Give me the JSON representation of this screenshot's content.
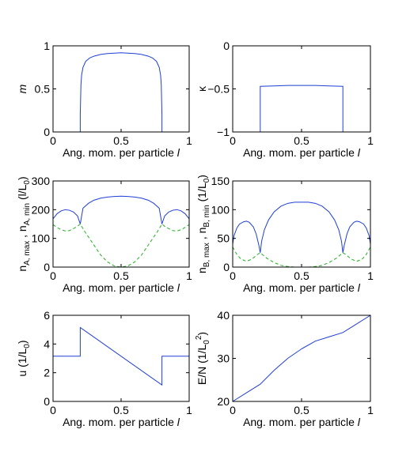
{
  "colors": {
    "blue": "#1f3fd6",
    "green": "#22b022",
    "axis": "#000000"
  },
  "chart_data": [
    {
      "id": "m",
      "type": "line",
      "ylabel": "m",
      "ylabel_italic": true,
      "xlabel": "Ang. mom. per particle",
      "xlabel_var": "l",
      "xlim": [
        0,
        1
      ],
      "ylim": [
        0,
        1
      ],
      "xticks": [
        0,
        0.5,
        1
      ],
      "xtick_labels": [
        "0",
        "0.5",
        "1"
      ],
      "yticks": [
        0,
        0.5,
        1
      ],
      "ytick_labels": [
        "0",
        "0.5",
        "1"
      ],
      "series": [
        {
          "color": "blue",
          "dash": false,
          "x": [
            0,
            0.2,
            0.2,
            0.205,
            0.21,
            0.22,
            0.24,
            0.27,
            0.3,
            0.35,
            0.4,
            0.45,
            0.5,
            0.55,
            0.6,
            0.65,
            0.7,
            0.73,
            0.76,
            0.78,
            0.79,
            0.795,
            0.8,
            0.8,
            1
          ],
          "y": [
            0,
            0,
            0.2,
            0.55,
            0.66,
            0.75,
            0.82,
            0.86,
            0.88,
            0.9,
            0.91,
            0.915,
            0.92,
            0.915,
            0.91,
            0.9,
            0.88,
            0.86,
            0.82,
            0.75,
            0.66,
            0.55,
            0.2,
            0,
            0
          ]
        }
      ]
    },
    {
      "id": "kappa",
      "type": "line",
      "ylabel": "κ",
      "ylabel_italic": false,
      "xlabel": "Ang. mom. per particle",
      "xlabel_var": "l",
      "xlim": [
        0,
        1
      ],
      "ylim": [
        -1,
        0
      ],
      "xticks": [
        0,
        0.5,
        1
      ],
      "xtick_labels": [
        "0",
        "0.5",
        "1"
      ],
      "yticks": [
        -1,
        -0.5,
        0
      ],
      "ytick_labels": [
        "−1",
        "−0.5",
        "0"
      ],
      "series": [
        {
          "color": "blue",
          "dash": false,
          "x": [
            0,
            0.2,
            0.2,
            0.3,
            0.4,
            0.5,
            0.6,
            0.7,
            0.8,
            0.8,
            1
          ],
          "y": [
            -1,
            -1,
            -0.47,
            -0.465,
            -0.46,
            -0.46,
            -0.46,
            -0.465,
            -0.47,
            -1,
            -1
          ]
        }
      ]
    },
    {
      "id": "nA",
      "type": "line",
      "ylabel": "n_{A, max} , n_{A, min} (l/L_0)",
      "ylabel_parts": [
        "n",
        "A, max",
        " , n",
        "A, min",
        " (l/L",
        "0",
        ")"
      ],
      "xlabel": "Ang. mom. per particle",
      "xlabel_var": "l",
      "xlim": [
        0,
        1
      ],
      "ylim": [
        0,
        300
      ],
      "xticks": [
        0,
        0.5,
        1
      ],
      "xtick_labels": [
        "0",
        "0.5",
        "1"
      ],
      "yticks": [
        0,
        100,
        200,
        300
      ],
      "ytick_labels": [
        "0",
        "100",
        "200",
        "300"
      ],
      "series": [
        {
          "color": "blue",
          "dash": false,
          "x": [
            0,
            0.03,
            0.06,
            0.09,
            0.12,
            0.15,
            0.18,
            0.2,
            0.22,
            0.26,
            0.3,
            0.35,
            0.4,
            0.45,
            0.5,
            0.55,
            0.6,
            0.65,
            0.7,
            0.74,
            0.78,
            0.8,
            0.82,
            0.85,
            0.88,
            0.91,
            0.94,
            0.97,
            1
          ],
          "y": [
            168,
            186,
            196,
            200,
            198,
            192,
            178,
            150,
            205,
            222,
            233,
            240,
            244,
            246,
            247,
            246,
            244,
            240,
            233,
            222,
            205,
            150,
            178,
            192,
            198,
            200,
            196,
            186,
            168
          ]
        },
        {
          "color": "green",
          "dash": true,
          "x": [
            0,
            0.03,
            0.06,
            0.09,
            0.12,
            0.15,
            0.18,
            0.2,
            0.23,
            0.27,
            0.31,
            0.35,
            0.4,
            0.45,
            0.5,
            0.55,
            0.6,
            0.65,
            0.69,
            0.73,
            0.77,
            0.8,
            0.82,
            0.85,
            0.88,
            0.91,
            0.94,
            0.97,
            1
          ],
          "y": [
            148,
            138,
            130,
            126,
            127,
            134,
            142,
            150,
            126,
            98,
            70,
            42,
            18,
            4,
            0,
            4,
            18,
            42,
            70,
            98,
            126,
            150,
            142,
            134,
            127,
            126,
            130,
            138,
            148
          ]
        }
      ]
    },
    {
      "id": "nB",
      "type": "line",
      "ylabel": "n_{B, max} , n_{B, min} (1/L_0)",
      "ylabel_parts": [
        "n",
        "B, max",
        " , n",
        "B, min",
        " (1/L",
        "0",
        ")"
      ],
      "xlabel": "Ang. mom. per particle",
      "xlabel_var": "l",
      "xlim": [
        0,
        1
      ],
      "ylim": [
        0,
        150
      ],
      "xticks": [
        0,
        0.5,
        1
      ],
      "xtick_labels": [
        "0",
        "0.5",
        "1"
      ],
      "yticks": [
        0,
        50,
        100,
        150
      ],
      "ytick_labels": [
        "0",
        "50",
        "100",
        "150"
      ],
      "series": [
        {
          "color": "blue",
          "dash": false,
          "x": [
            0,
            0.01,
            0.03,
            0.05,
            0.08,
            0.1,
            0.12,
            0.15,
            0.17,
            0.19,
            0.2,
            0.2,
            0.21,
            0.23,
            0.26,
            0.3,
            0.35,
            0.4,
            0.45,
            0.5,
            0.55,
            0.6,
            0.65,
            0.7,
            0.74,
            0.77,
            0.79,
            0.8,
            0.8,
            0.81,
            0.83,
            0.85,
            0.88,
            0.9,
            0.92,
            0.95,
            0.97,
            0.99,
            1
          ],
          "y": [
            40,
            55,
            68,
            75,
            79,
            80,
            78,
            70,
            58,
            38,
            25,
            25,
            45,
            65,
            82,
            96,
            106,
            111,
            113,
            113,
            113,
            111,
            106,
            96,
            82,
            65,
            45,
            25,
            25,
            38,
            58,
            70,
            78,
            80,
            79,
            75,
            68,
            55,
            40
          ]
        },
        {
          "color": "green",
          "dash": true,
          "x": [
            0,
            0.03,
            0.06,
            0.1,
            0.14,
            0.18,
            0.2,
            0.25,
            0.3,
            0.35,
            0.4,
            0.45,
            0.5,
            0.55,
            0.6,
            0.65,
            0.7,
            0.75,
            0.8,
            0.82,
            0.86,
            0.9,
            0.94,
            0.97,
            1
          ],
          "y": [
            35,
            22,
            14,
            10,
            14,
            22,
            25,
            15,
            8,
            3,
            1,
            0,
            0,
            0,
            1,
            3,
            8,
            15,
            25,
            22,
            14,
            10,
            14,
            22,
            35
          ]
        }
      ]
    },
    {
      "id": "u",
      "type": "line",
      "ylabel": "u (1/L_0)",
      "ylabel_parts": [
        "u (1/L",
        "0",
        ")"
      ],
      "xlabel": "Ang. mom. per particle",
      "xlabel_var": "l",
      "xlim": [
        0,
        1
      ],
      "ylim": [
        0,
        6
      ],
      "xticks": [
        0,
        0.5,
        1
      ],
      "xtick_labels": [
        "0",
        "0.5",
        "1"
      ],
      "yticks": [
        0,
        2,
        4,
        6
      ],
      "ytick_labels": [
        "0",
        "2",
        "4",
        "6"
      ],
      "series": [
        {
          "color": "blue",
          "dash": false,
          "x": [
            0,
            0.2,
            0.2,
            0.8,
            0.8,
            1
          ],
          "y": [
            3.15,
            3.15,
            5.15,
            1.15,
            3.15,
            3.15
          ]
        }
      ]
    },
    {
      "id": "EN",
      "type": "line",
      "ylabel": "E/N (1/L_0^2)",
      "ylabel_parts": [
        "E/N (1/L",
        "0",
        "2",
        ")"
      ],
      "xlabel": "Ang. mom. per particle",
      "xlabel_var": "l",
      "xlim": [
        0,
        1
      ],
      "ylim": [
        20,
        40
      ],
      "xticks": [
        0,
        0.5,
        1
      ],
      "xtick_labels": [
        "0",
        "0.5",
        "1"
      ],
      "yticks": [
        20,
        30,
        40
      ],
      "ytick_labels": [
        "20",
        "30",
        "40"
      ],
      "series": [
        {
          "color": "blue",
          "dash": false,
          "x": [
            0,
            0.1,
            0.2,
            0.3,
            0.4,
            0.5,
            0.6,
            0.7,
            0.8,
            0.9,
            1
          ],
          "y": [
            20,
            22,
            24,
            27.2,
            30,
            32.2,
            34,
            35,
            36,
            38,
            40
          ]
        }
      ]
    }
  ]
}
